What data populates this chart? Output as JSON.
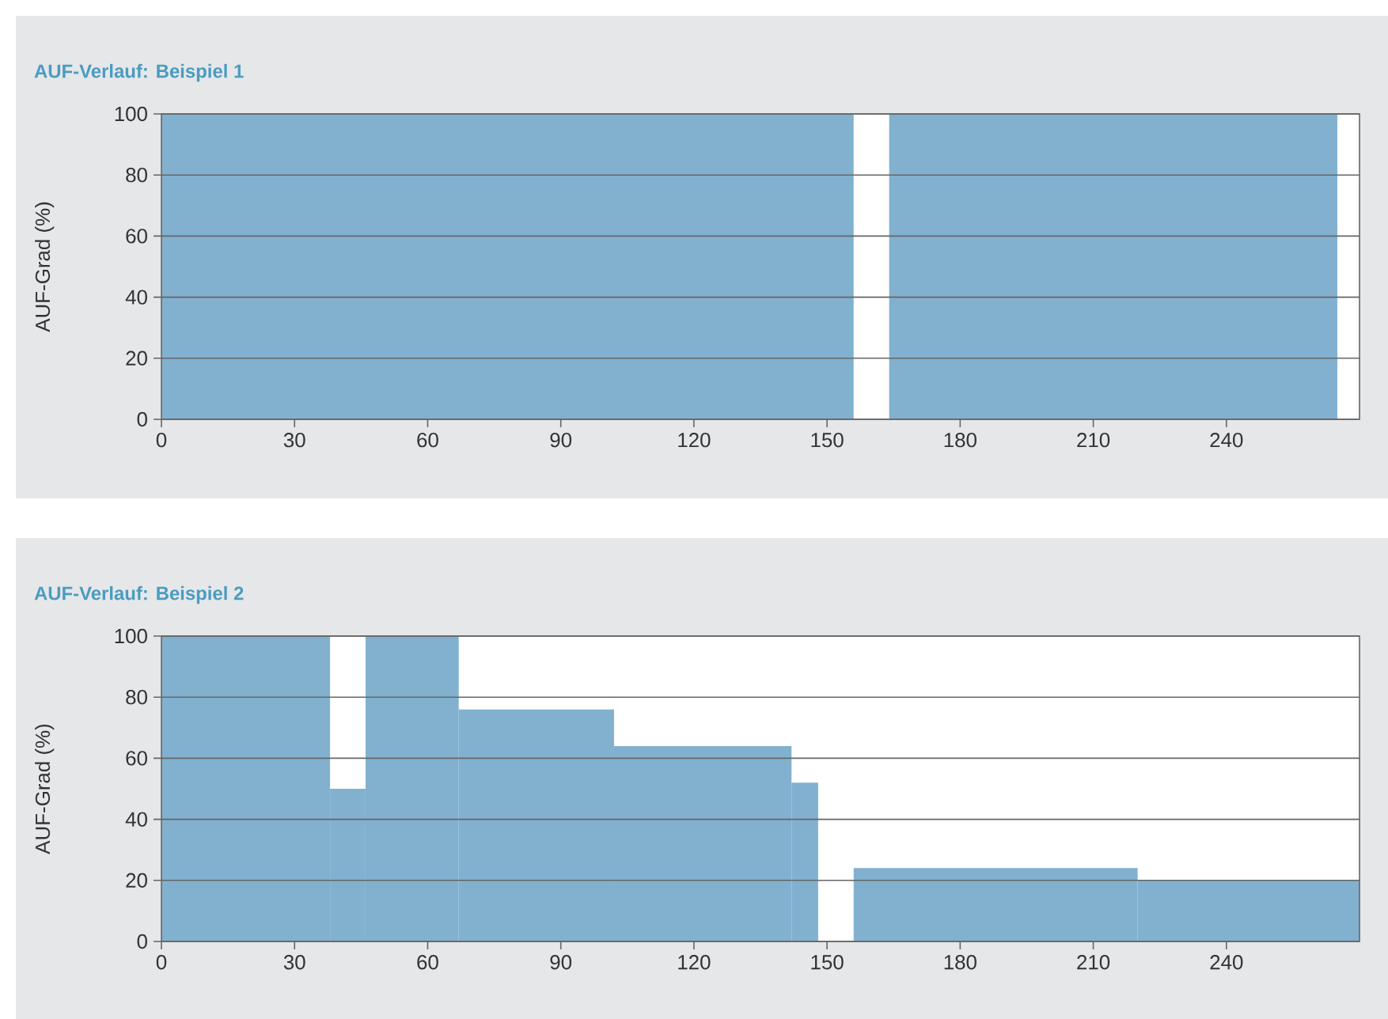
{
  "chart_data": [
    {
      "type": "histogram",
      "title": "AUF-Verlauf: Beispiel 1",
      "ylabel": "AUF-Grad (%)",
      "bins": [
        0,
        156,
        164,
        265
      ],
      "values": [
        100,
        null,
        100
      ],
      "color": "#82b1d0",
      "xlim": [
        0,
        270
      ],
      "ylim": [
        0,
        100
      ],
      "xticks": [
        0,
        30,
        60,
        90,
        120,
        150,
        180,
        210,
        240
      ],
      "yticks": [
        0,
        20,
        40,
        60,
        80,
        100
      ],
      "grid": "y"
    },
    {
      "type": "histogram",
      "title": "AUF-Verlauf: Beispiel 2",
      "ylabel": "AUF-Grad (%)",
      "bins": [
        0,
        38,
        46,
        67,
        102,
        142,
        148,
        156,
        220,
        270
      ],
      "values": [
        100,
        50,
        100,
        76,
        64,
        52,
        null,
        24,
        20
      ],
      "color": "#82b1d0",
      "xlim": [
        0,
        270
      ],
      "ylim": [
        0,
        100
      ],
      "xticks": [
        0,
        30,
        60,
        90,
        120,
        150,
        180,
        210,
        240
      ],
      "yticks": [
        0,
        20,
        40,
        60,
        80,
        100
      ],
      "grid": "y"
    }
  ]
}
